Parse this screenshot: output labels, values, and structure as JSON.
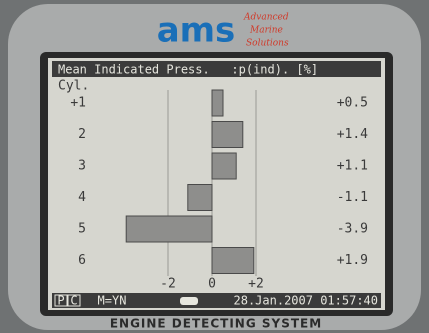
{
  "brand": {
    "name": "ams",
    "line1": "Advanced",
    "line2": "Marine",
    "line3": "Solutions"
  },
  "chart_data": {
    "type": "bar",
    "orientation": "horizontal",
    "title": "Mean Indicated Press.   :p(ind). [%]",
    "y_label": "Cyl.",
    "categories": [
      "+1",
      "2",
      "3",
      "4",
      "5",
      "6"
    ],
    "values": [
      0.5,
      1.4,
      1.1,
      -1.1,
      -3.9,
      1.9
    ],
    "value_labels": [
      "+0.5",
      "+1.4",
      "+1.1",
      "-1.1",
      "-3.9",
      "+1.9"
    ],
    "color": "#8e8e8c",
    "xlim": [
      -4.2,
      4.2
    ],
    "xticks": [
      -2,
      0,
      {
        "value": 2,
        "label": "+2"
      }
    ],
    "grid": true
  },
  "status": {
    "p": "P",
    "c": "C",
    "mode": "M=YN",
    "datetime": "28.Jan.2007 01:57:40"
  },
  "footer": "ENGINE DETECTING SYSTEM"
}
